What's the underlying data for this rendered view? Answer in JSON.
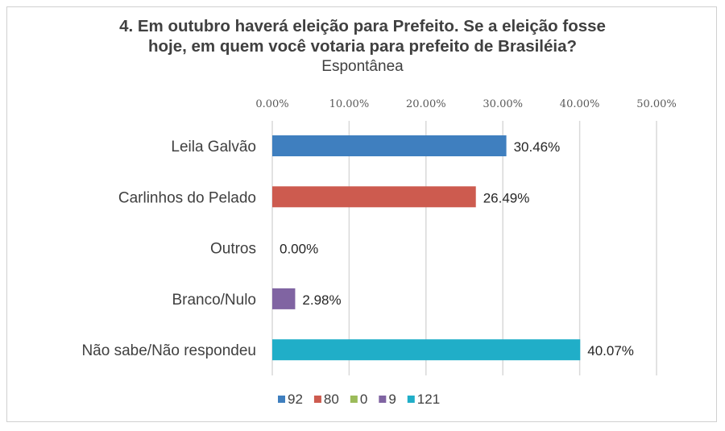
{
  "chart_data": {
    "type": "bar",
    "orientation": "horizontal",
    "title": "4. Em outubro haverá eleição para Prefeito. Se a eleição fosse hoje, em quem você votaria para prefeito de Brasiléia?",
    "title_line1": "4. Em outubro haverá eleição para Prefeito. Se a eleição fosse",
    "title_line2": "hoje, em quem você votaria para prefeito de Brasiléia?",
    "subtitle": "Espontânea",
    "categories": [
      "Leila Galvão",
      "Carlinhos do Pelado",
      "Outros",
      "Branco/Nulo",
      "Não sabe/Não respondeu"
    ],
    "values": [
      30.46,
      26.49,
      0.0,
      2.98,
      40.07
    ],
    "data_labels": [
      "30.46%",
      "26.49%",
      "0.00%",
      "2.98%",
      "40.07%"
    ],
    "colors": [
      "#3f7fbf",
      "#cd5b4f",
      "#9bbb59",
      "#8064a2",
      "#20aec8"
    ],
    "xlim": [
      0,
      50
    ],
    "x_ticks": [
      "0.00%",
      "10.00%",
      "20.00%",
      "30.00%",
      "40.00%",
      "50.00%"
    ],
    "x_axis_position": "top",
    "grid": true,
    "legend_position": "bottom",
    "legend": [
      "92",
      "80",
      "0",
      "9",
      "121"
    ]
  }
}
